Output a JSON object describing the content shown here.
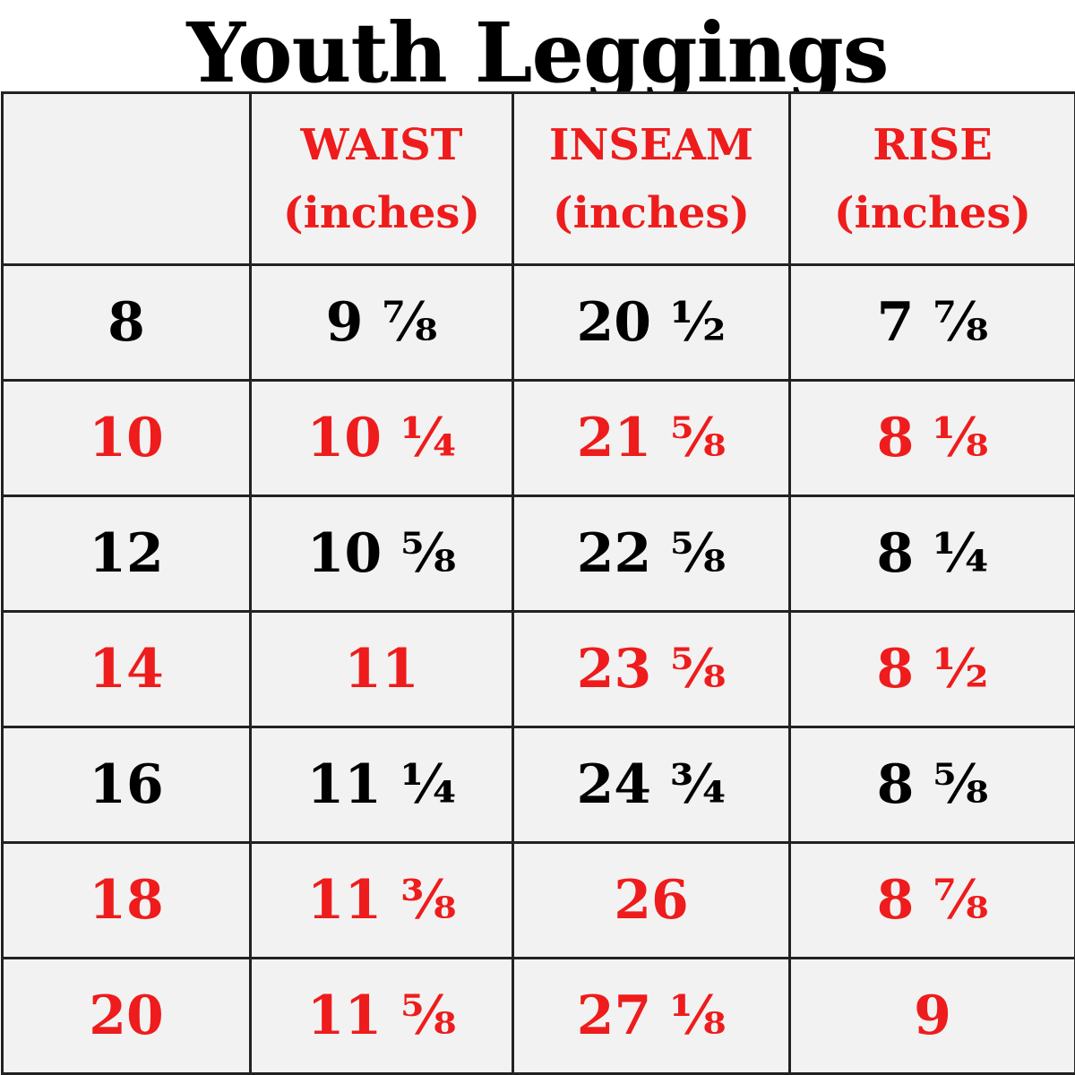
{
  "title": "Youth Leggings",
  "colors": {
    "accent_red": "#ee1c1c",
    "text_black": "#000000",
    "cell_background": "#f2f2f2",
    "grid_line": "#222222"
  },
  "table": {
    "headers": [
      {
        "line1": "",
        "line2": ""
      },
      {
        "line1": "WAIST",
        "line2": "(inches)"
      },
      {
        "line1": "INSEAM",
        "line2": "(inches)"
      },
      {
        "line1": "RISE",
        "line2": "(inches)"
      }
    ],
    "rows": [
      {
        "style": "black",
        "cells": [
          "8",
          "9 ⅞",
          "20 ½",
          "7 ⅞"
        ]
      },
      {
        "style": "red",
        "cells": [
          "10",
          "10 ¼",
          "21 ⅝",
          "8 ⅛"
        ]
      },
      {
        "style": "black",
        "cells": [
          "12",
          "10 ⅝",
          "22 ⅝",
          "8 ¼"
        ]
      },
      {
        "style": "red",
        "cells": [
          "14",
          "11",
          "23 ⅝",
          "8 ½"
        ]
      },
      {
        "style": "black",
        "cells": [
          "16",
          "11 ¼",
          "24 ¾",
          "8 ⅝"
        ]
      },
      {
        "style": "red",
        "cells": [
          "18",
          "11 ⅜",
          "26",
          "8 ⅞"
        ]
      },
      {
        "style": "red",
        "cells": [
          "20",
          "11 ⅝",
          "27 ⅛",
          "9"
        ]
      }
    ]
  }
}
